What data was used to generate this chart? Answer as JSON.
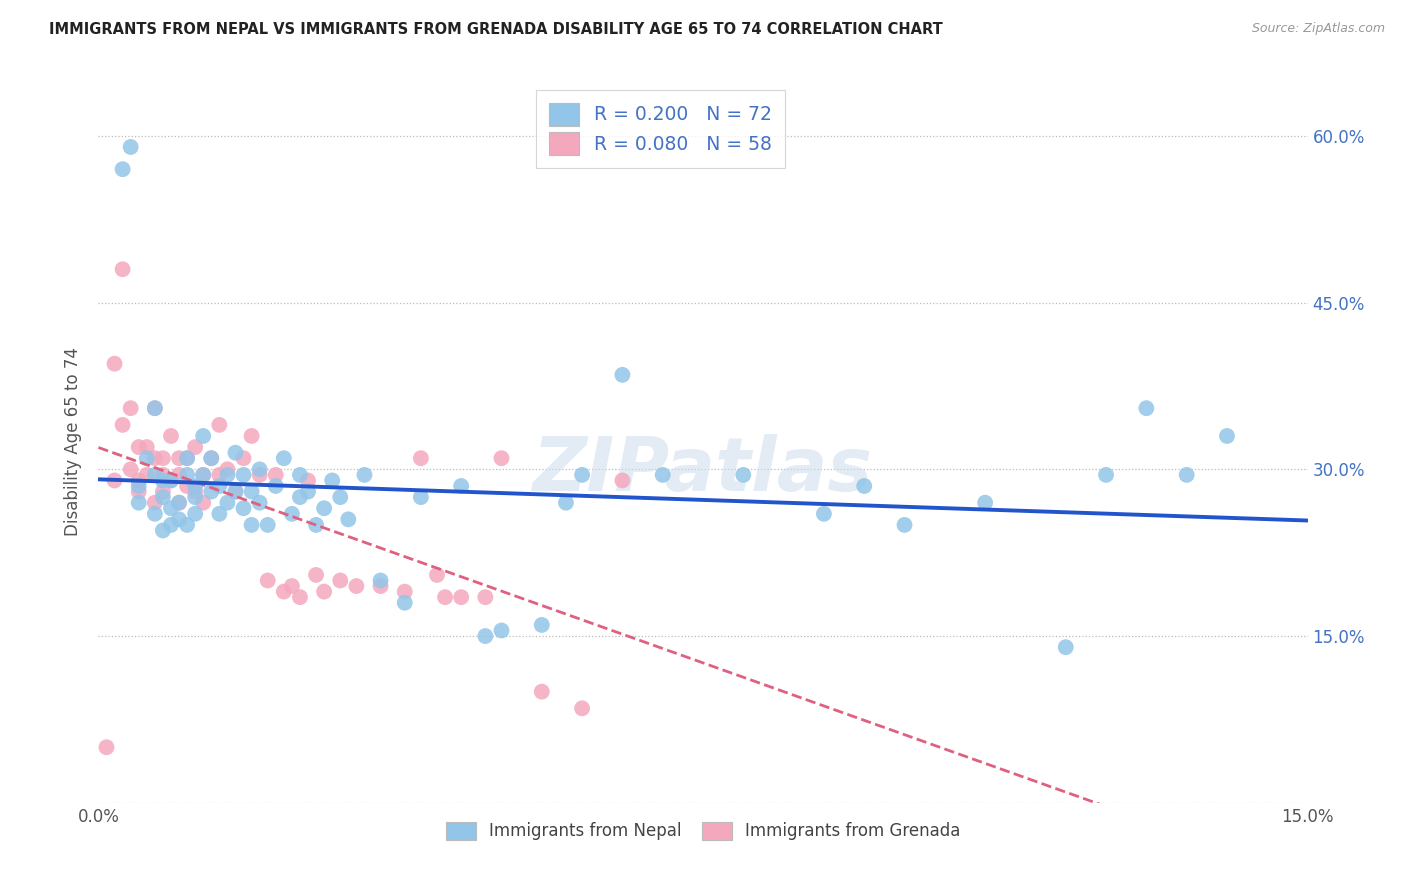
{
  "title": "IMMIGRANTS FROM NEPAL VS IMMIGRANTS FROM GRENADA DISABILITY AGE 65 TO 74 CORRELATION CHART",
  "source": "Source: ZipAtlas.com",
  "ylabel": "Disability Age 65 to 74",
  "legend_label1": "Immigrants from Nepal",
  "legend_label2": "Immigrants from Grenada",
  "R1": 0.2,
  "N1": 72,
  "R2": 0.08,
  "N2": 58,
  "xmin": 0.0,
  "xmax": 0.15,
  "ymin": 0.0,
  "ymax": 0.65,
  "color_nepal": "#92C5E8",
  "color_grenada": "#F4A8BE",
  "line_color_nepal": "#2255CC",
  "line_color_grenada": "#E06080",
  "legend_text_color": "#4472C4",
  "watermark": "ZIPatlas",
  "nepal_x": [
    0.003,
    0.004,
    0.005,
    0.005,
    0.006,
    0.007,
    0.007,
    0.007,
    0.008,
    0.008,
    0.008,
    0.009,
    0.009,
    0.009,
    0.01,
    0.01,
    0.011,
    0.011,
    0.011,
    0.012,
    0.012,
    0.012,
    0.013,
    0.013,
    0.014,
    0.014,
    0.015,
    0.015,
    0.016,
    0.016,
    0.017,
    0.017,
    0.018,
    0.018,
    0.019,
    0.019,
    0.02,
    0.02,
    0.021,
    0.022,
    0.023,
    0.024,
    0.025,
    0.025,
    0.026,
    0.027,
    0.028,
    0.029,
    0.03,
    0.031,
    0.033,
    0.035,
    0.038,
    0.04,
    0.045,
    0.048,
    0.05,
    0.055,
    0.058,
    0.06,
    0.065,
    0.07,
    0.08,
    0.09,
    0.095,
    0.1,
    0.11,
    0.12,
    0.125,
    0.13,
    0.135,
    0.14
  ],
  "nepal_y": [
    0.57,
    0.59,
    0.285,
    0.27,
    0.31,
    0.295,
    0.26,
    0.355,
    0.275,
    0.245,
    0.29,
    0.265,
    0.25,
    0.29,
    0.27,
    0.255,
    0.31,
    0.295,
    0.25,
    0.275,
    0.26,
    0.285,
    0.33,
    0.295,
    0.28,
    0.31,
    0.26,
    0.285,
    0.295,
    0.27,
    0.315,
    0.28,
    0.265,
    0.295,
    0.25,
    0.28,
    0.3,
    0.27,
    0.25,
    0.285,
    0.31,
    0.26,
    0.295,
    0.275,
    0.28,
    0.25,
    0.265,
    0.29,
    0.275,
    0.255,
    0.295,
    0.2,
    0.18,
    0.275,
    0.285,
    0.15,
    0.155,
    0.16,
    0.27,
    0.295,
    0.385,
    0.295,
    0.295,
    0.26,
    0.285,
    0.25,
    0.27,
    0.14,
    0.295,
    0.355,
    0.295,
    0.33
  ],
  "grenada_x": [
    0.001,
    0.002,
    0.002,
    0.003,
    0.003,
    0.004,
    0.004,
    0.005,
    0.005,
    0.005,
    0.006,
    0.006,
    0.007,
    0.007,
    0.007,
    0.008,
    0.008,
    0.008,
    0.009,
    0.009,
    0.01,
    0.01,
    0.01,
    0.011,
    0.011,
    0.012,
    0.012,
    0.013,
    0.013,
    0.014,
    0.015,
    0.015,
    0.016,
    0.017,
    0.018,
    0.019,
    0.02,
    0.021,
    0.022,
    0.023,
    0.024,
    0.025,
    0.026,
    0.027,
    0.028,
    0.03,
    0.032,
    0.035,
    0.038,
    0.04,
    0.042,
    0.043,
    0.045,
    0.048,
    0.05,
    0.055,
    0.06,
    0.065
  ],
  "grenada_y": [
    0.05,
    0.395,
    0.29,
    0.48,
    0.34,
    0.3,
    0.355,
    0.29,
    0.32,
    0.28,
    0.32,
    0.295,
    0.27,
    0.355,
    0.31,
    0.295,
    0.28,
    0.31,
    0.29,
    0.33,
    0.31,
    0.27,
    0.295,
    0.285,
    0.31,
    0.28,
    0.32,
    0.295,
    0.27,
    0.31,
    0.295,
    0.34,
    0.3,
    0.28,
    0.31,
    0.33,
    0.295,
    0.2,
    0.295,
    0.19,
    0.195,
    0.185,
    0.29,
    0.205,
    0.19,
    0.2,
    0.195,
    0.195,
    0.19,
    0.31,
    0.205,
    0.185,
    0.185,
    0.185,
    0.31,
    0.1,
    0.085,
    0.29
  ]
}
